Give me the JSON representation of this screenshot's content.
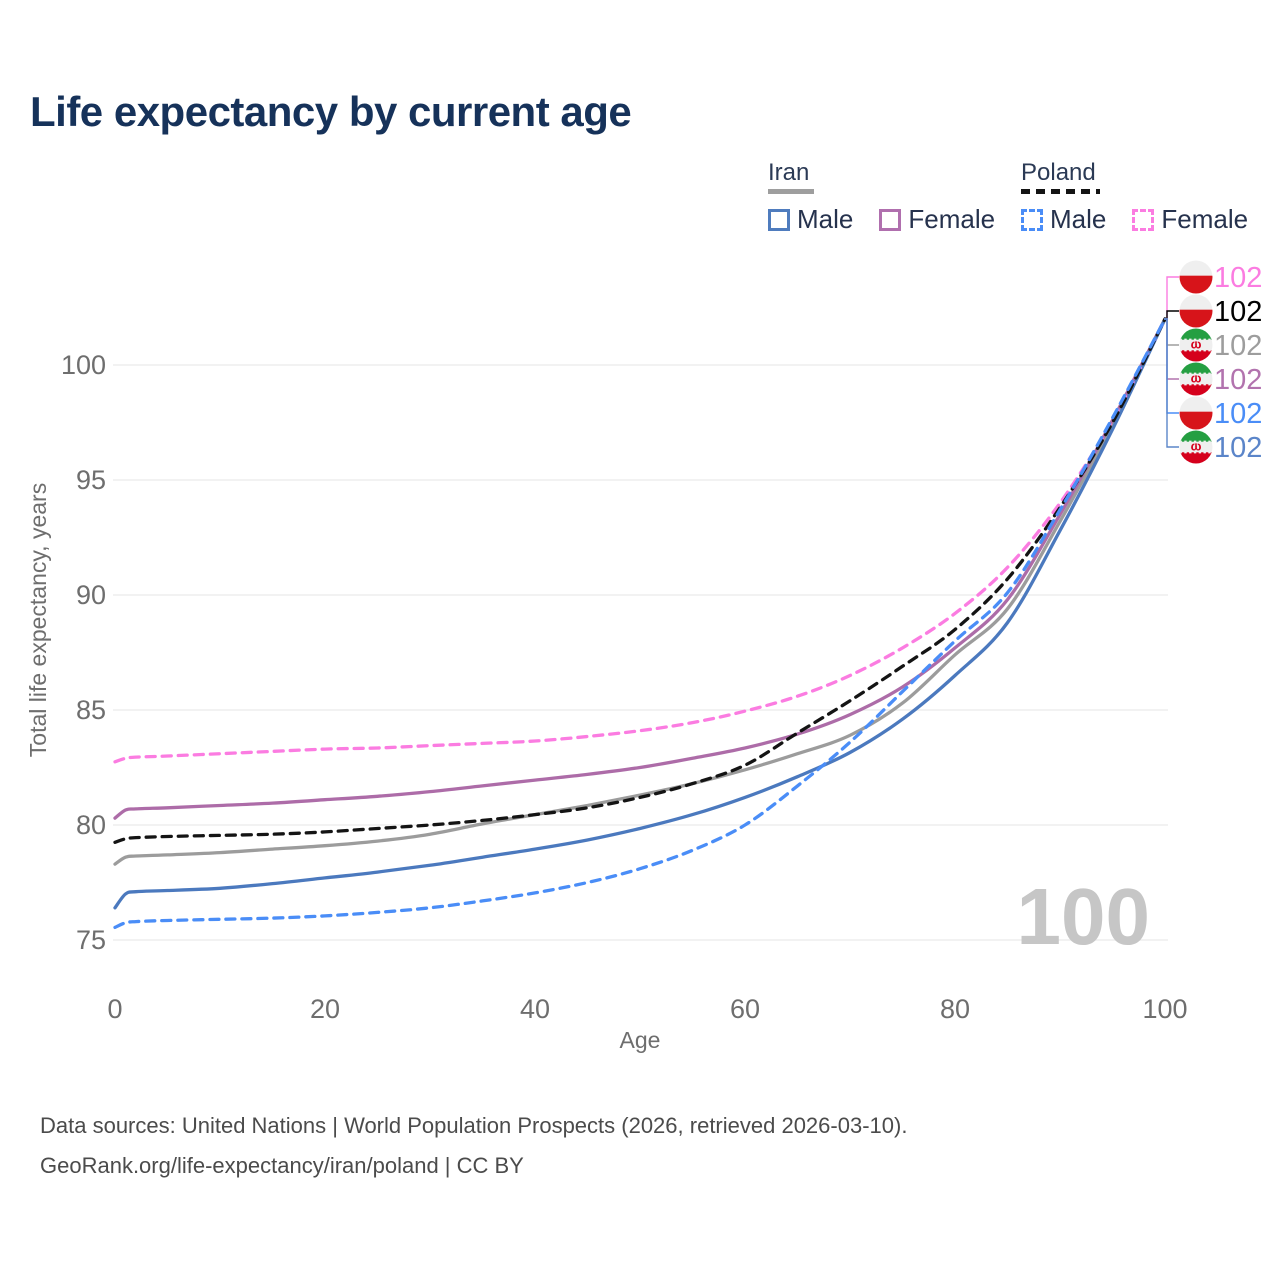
{
  "title": "Life expectancy by current age",
  "legend": {
    "groups": [
      {
        "label": "Iran",
        "line_style": "solid",
        "underline_color": "#9e9e9e",
        "items": [
          {
            "label": "Male",
            "color": "#4f7cbe"
          },
          {
            "label": "Female",
            "color": "#b06fae"
          }
        ]
      },
      {
        "label": "Poland",
        "line_style": "dashed",
        "underline_color": "#141414",
        "items": [
          {
            "label": "Male",
            "color": "#4a8df7"
          },
          {
            "label": "Female",
            "color": "#fb7ce1"
          }
        ]
      }
    ]
  },
  "chart_data": {
    "type": "line",
    "title": "Life expectancy by current age",
    "xlabel": "Age",
    "ylabel": "Total life expectancy, years",
    "x_ticks": [
      0,
      20,
      40,
      60,
      80,
      100
    ],
    "y_ticks": [
      75,
      80,
      85,
      90,
      95,
      100
    ],
    "xlim": [
      0,
      100
    ],
    "ylim": [
      74,
      102.5
    ],
    "grid": "horizontal-only",
    "legend_position": "top-right",
    "x": [
      0,
      1,
      2,
      5,
      10,
      15,
      20,
      25,
      30,
      35,
      40,
      45,
      50,
      55,
      60,
      65,
      70,
      75,
      80,
      85,
      90,
      95,
      100
    ],
    "series": [
      {
        "name": "Poland Female",
        "country": "Poland",
        "sex": "Female",
        "color": "#fb7ce1",
        "dash": "dashed",
        "flag": "poland-flag-icon",
        "end_label": "102",
        "label_color": "#fb7ce1",
        "values": [
          82.75,
          82.9,
          82.95,
          83.0,
          83.1,
          83.2,
          83.3,
          83.35,
          83.45,
          83.55,
          83.65,
          83.85,
          84.1,
          84.45,
          84.95,
          85.6,
          86.5,
          87.7,
          89.2,
          91.2,
          94.0,
          97.6,
          102
        ]
      },
      {
        "name": "Poland",
        "country": "Poland",
        "sex": "Both",
        "color": "#141414",
        "dash": "dashed",
        "flag": "poland-flag-icon",
        "end_label": "102",
        "label_color": "#000000",
        "values": [
          79.25,
          79.4,
          79.45,
          79.5,
          79.55,
          79.6,
          79.7,
          79.85,
          80.0,
          80.2,
          80.45,
          80.75,
          81.2,
          81.8,
          82.6,
          84.0,
          85.4,
          86.9,
          88.5,
          90.7,
          93.8,
          97.5,
          102
        ]
      },
      {
        "name": "Iran",
        "country": "Iran",
        "sex": "Both",
        "color": "#9c9c9c",
        "dash": "solid",
        "flag": "iran-flag-icon",
        "end_label": "102",
        "label_color": "#9d9d9d",
        "values": [
          78.3,
          78.6,
          78.65,
          78.7,
          78.8,
          78.95,
          79.1,
          79.3,
          79.6,
          80.05,
          80.45,
          80.85,
          81.3,
          81.8,
          82.4,
          83.1,
          83.9,
          85.3,
          87.4,
          89.4,
          93.2,
          97.4,
          102
        ]
      },
      {
        "name": "Iran Female",
        "country": "Iran",
        "sex": "Female",
        "color": "#ad6ca8",
        "dash": "solid",
        "flag": "iran-flag-icon",
        "end_label": "102",
        "label_color": "#b273ae",
        "values": [
          80.3,
          80.65,
          80.7,
          80.75,
          80.85,
          80.95,
          81.1,
          81.25,
          81.45,
          81.7,
          81.95,
          82.2,
          82.5,
          82.9,
          83.35,
          83.95,
          84.8,
          86.0,
          87.7,
          89.8,
          93.5,
          97.6,
          102
        ]
      },
      {
        "name": "Poland Male",
        "country": "Poland",
        "sex": "Male",
        "color": "#4a8df7",
        "dash": "dashed",
        "flag": "poland-flag-icon",
        "end_label": "102",
        "label_color": "#4a8df7",
        "values": [
          75.55,
          75.75,
          75.8,
          75.85,
          75.9,
          75.95,
          76.05,
          76.2,
          76.4,
          76.7,
          77.05,
          77.5,
          78.1,
          78.9,
          80.0,
          81.7,
          83.6,
          85.8,
          88.0,
          90.1,
          93.7,
          97.7,
          102
        ]
      },
      {
        "name": "Iran Male",
        "country": "Iran",
        "sex": "Male",
        "color": "#4b79be",
        "dash": "solid",
        "flag": "iran-flag-icon",
        "end_label": "102",
        "label_color": "#5b85c9",
        "values": [
          76.4,
          77.0,
          77.1,
          77.15,
          77.25,
          77.45,
          77.7,
          77.95,
          78.25,
          78.6,
          78.95,
          79.35,
          79.85,
          80.45,
          81.2,
          82.1,
          83.15,
          84.6,
          86.5,
          88.8,
          92.8,
          97.2,
          102
        ]
      }
    ],
    "annotations": {
      "age_counter_watermark": "100"
    }
  },
  "watermark": "100",
  "footer": {
    "line1": "Data sources: United Nations | World Population Prospects (2026, retrieved 2026-03-10).",
    "line2": "GeoRank.org/life-expectancy/iran/poland | CC BY"
  },
  "colors": {
    "title": "#16325a",
    "axis_text": "#6e6e6e",
    "gridline": "#ededed",
    "watermark": "#c6c6c6",
    "footer_text": "#4b4b4b",
    "poland_flag_red": "#d7141a",
    "iran_flag_green": "#259f42",
    "iran_flag_red": "#d5001c"
  }
}
